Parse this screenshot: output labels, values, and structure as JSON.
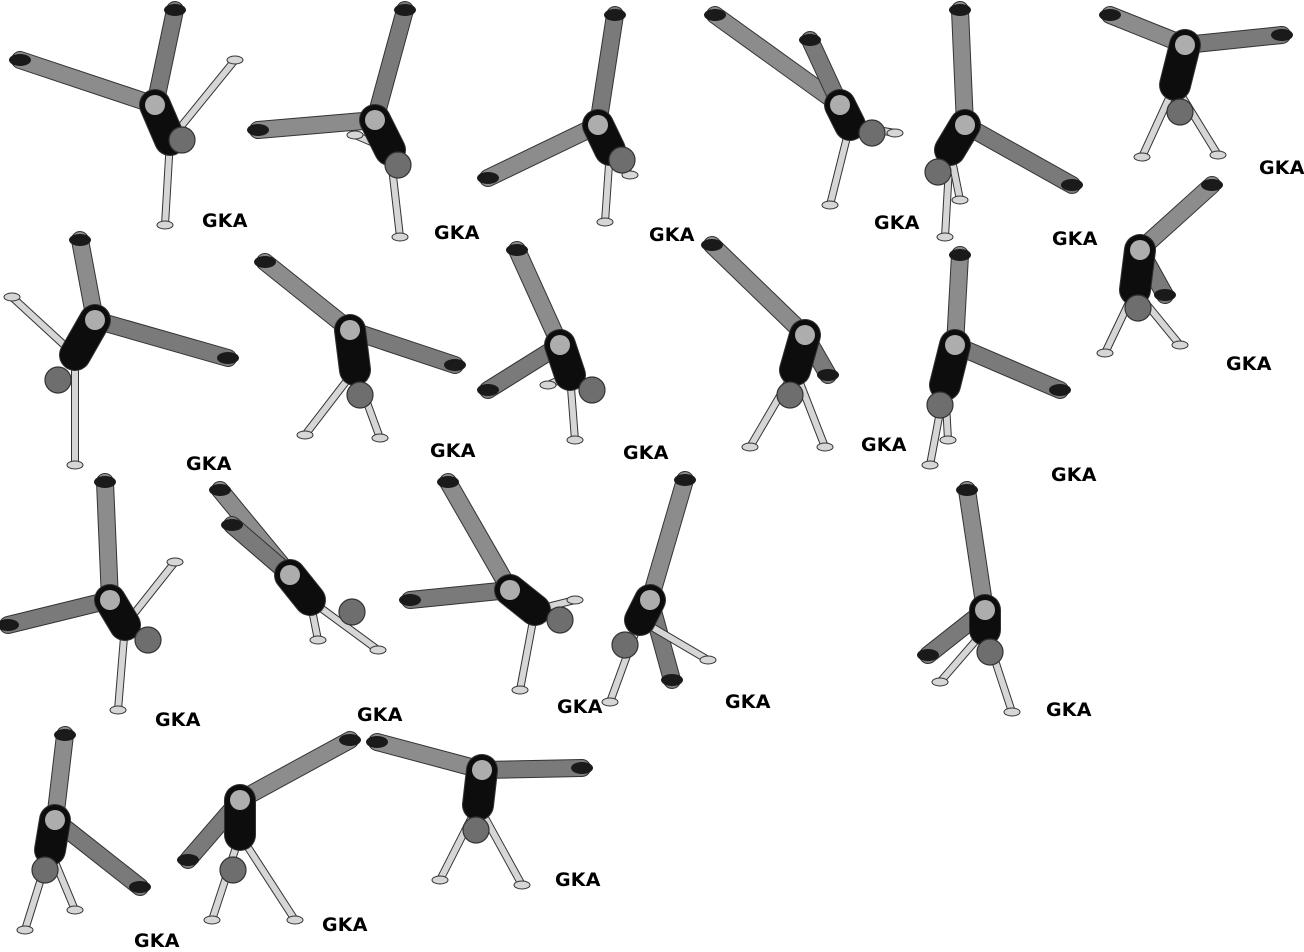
{
  "sheet": {
    "description_free": true,
    "label_text": "GKA",
    "colors": {
      "background": "#ffffff",
      "pants": "#8c8c8c",
      "pants_dark": "#7a7a7a",
      "shirt": "#0d0d0d",
      "skin": "#d6d6d6",
      "cap": "#6e6e6e",
      "shoe": "#1a1a1a",
      "outline": "#333333",
      "label": "#000000"
    }
  },
  "figures": [
    {
      "id": "f1",
      "label": "GKA"
    },
    {
      "id": "f2",
      "label": "GKA"
    },
    {
      "id": "f3",
      "label": "GKA"
    },
    {
      "id": "f4",
      "label": "GKA"
    },
    {
      "id": "f5",
      "label": "GKA"
    },
    {
      "id": "f6",
      "label": "GKA"
    },
    {
      "id": "f7",
      "label": "GKA"
    },
    {
      "id": "f8",
      "label": "GKA"
    },
    {
      "id": "f9",
      "label": "GKA"
    },
    {
      "id": "f10",
      "label": "GKA"
    },
    {
      "id": "f11",
      "label": "GKA"
    },
    {
      "id": "f12",
      "label": "GKA"
    },
    {
      "id": "f13",
      "label": "GKA"
    },
    {
      "id": "f14",
      "label": "GKA"
    },
    {
      "id": "f15",
      "label": "GKA"
    },
    {
      "id": "f16",
      "label": "GKA"
    },
    {
      "id": "f17",
      "label": "GKA"
    },
    {
      "id": "f18",
      "label": "GKA"
    },
    {
      "id": "f19",
      "label": "GKA"
    },
    {
      "id": "f20",
      "label": "GKA"
    },
    {
      "id": "f21",
      "label": "GKA"
    }
  ]
}
